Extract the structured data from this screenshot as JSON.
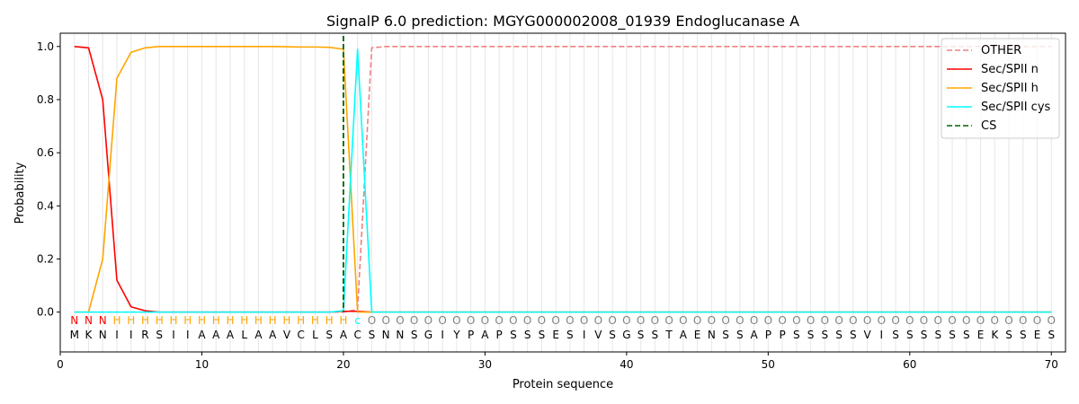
{
  "chart_data": {
    "type": "line",
    "title": "SignalP 6.0 prediction: MGYG000002008_01939 Endoglucanase A",
    "xlabel": "Protein sequence",
    "ylabel": "Probability",
    "xlim": [
      0,
      71
    ],
    "ylim": [
      -0.15,
      1.05
    ],
    "xticks": [
      0,
      10,
      20,
      30,
      40,
      50,
      60,
      70
    ],
    "yticks": [
      0.0,
      0.2,
      0.4,
      0.6,
      0.8,
      1.0
    ],
    "grid": "vertical lines at each residue",
    "legend_position": "top-right",
    "x": [
      1,
      2,
      3,
      4,
      5,
      6,
      7,
      8,
      9,
      10,
      11,
      12,
      13,
      14,
      15,
      16,
      17,
      18,
      19,
      20,
      21,
      22,
      23,
      24,
      25,
      26,
      27,
      28,
      29,
      30,
      31,
      32,
      33,
      34,
      35,
      36,
      37,
      38,
      39,
      40,
      41,
      42,
      43,
      44,
      45,
      46,
      47,
      48,
      49,
      50,
      51,
      52,
      53,
      54,
      55,
      56,
      57,
      58,
      59,
      60,
      61,
      62,
      63,
      64,
      65,
      66,
      67,
      68,
      69,
      70
    ],
    "sequence": [
      "M",
      "K",
      "N",
      "I",
      "I",
      "R",
      "S",
      "I",
      "I",
      "A",
      "A",
      "A",
      "L",
      "A",
      "A",
      "V",
      "C",
      "L",
      "S",
      "A",
      "C",
      "S",
      "N",
      "N",
      "S",
      "G",
      "I",
      "Y",
      "P",
      "A",
      "P",
      "S",
      "S",
      "S",
      "E",
      "S",
      "I",
      "V",
      "S",
      "G",
      "S",
      "S",
      "T",
      "A",
      "E",
      "N",
      "S",
      "S",
      "A",
      "P",
      "P",
      "S",
      "S",
      "S",
      "S",
      "S",
      "V",
      "I",
      "S",
      "S",
      "S",
      "S",
      "S",
      "S",
      "E",
      "K",
      "S",
      "S",
      "E",
      "S"
    ],
    "region_labels": [
      "N",
      "N",
      "N",
      "H",
      "H",
      "H",
      "H",
      "H",
      "H",
      "H",
      "H",
      "H",
      "H",
      "H",
      "H",
      "H",
      "H",
      "H",
      "H",
      "H",
      "c",
      "O",
      "O",
      "O",
      "O",
      "O",
      "O",
      "O",
      "O",
      "O",
      "O",
      "O",
      "O",
      "O",
      "O",
      "O",
      "O",
      "O",
      "O",
      "O",
      "O",
      "O",
      "O",
      "O",
      "O",
      "O",
      "O",
      "O",
      "O",
      "O",
      "O",
      "O",
      "O",
      "O",
      "O",
      "O",
      "O",
      "O",
      "O",
      "O",
      "O",
      "O",
      "O",
      "O",
      "O",
      "O",
      "O",
      "O",
      "O",
      "O"
    ],
    "region_colors": {
      "N": "#ff0000",
      "H": "#ffa500",
      "c": "#00ffff",
      "O": "#808080"
    },
    "series": [
      {
        "name": "OTHER",
        "color": "#f08080",
        "dash": "dashed",
        "values": [
          0,
          0,
          0,
          0,
          0,
          0,
          0,
          0,
          0,
          0,
          0,
          0,
          0,
          0,
          0,
          0,
          0,
          0,
          0,
          0,
          0.01,
          0.995,
          1,
          1,
          1,
          1,
          1,
          1,
          1,
          1,
          1,
          1,
          1,
          1,
          1,
          1,
          1,
          1,
          1,
          1,
          1,
          1,
          1,
          1,
          1,
          1,
          1,
          1,
          1,
          1,
          1,
          1,
          1,
          1,
          1,
          1,
          1,
          1,
          1,
          1,
          1,
          1,
          1,
          1,
          1,
          1,
          1,
          1,
          1,
          1
        ]
      },
      {
        "name": "Sec/SPII n",
        "color": "#ff0000",
        "dash": "solid",
        "values": [
          1.0,
          0.995,
          0.8,
          0.12,
          0.02,
          0.005,
          0,
          0,
          0,
          0,
          0,
          0,
          0,
          0,
          0,
          0,
          0,
          0,
          0,
          0.003,
          0.003,
          0,
          0,
          0,
          0,
          0,
          0,
          0,
          0,
          0,
          0,
          0,
          0,
          0,
          0,
          0,
          0,
          0,
          0,
          0,
          0,
          0,
          0,
          0,
          0,
          0,
          0,
          0,
          0,
          0,
          0,
          0,
          0,
          0,
          0,
          0,
          0,
          0,
          0,
          0,
          0,
          0,
          0,
          0,
          0,
          0,
          0,
          0,
          0,
          0
        ]
      },
      {
        "name": "Sec/SPII h",
        "color": "#ffa500",
        "dash": "solid",
        "values": [
          0,
          0,
          0.2,
          0.88,
          0.978,
          0.995,
          1.0,
          1.0,
          1.0,
          1.0,
          1.0,
          1.0,
          1.0,
          1.0,
          1.0,
          0.999,
          0.998,
          0.998,
          0.997,
          0.99,
          0,
          0,
          0,
          0,
          0,
          0,
          0,
          0,
          0,
          0,
          0,
          0,
          0,
          0,
          0,
          0,
          0,
          0,
          0,
          0,
          0,
          0,
          0,
          0,
          0,
          0,
          0,
          0,
          0,
          0,
          0,
          0,
          0,
          0,
          0,
          0,
          0,
          0,
          0,
          0,
          0,
          0,
          0,
          0,
          0,
          0,
          0,
          0,
          0,
          0
        ]
      },
      {
        "name": "Sec/SPII cys",
        "color": "#00ffff",
        "dash": "solid",
        "values": [
          0,
          0,
          0,
          0,
          0,
          0,
          0,
          0,
          0,
          0,
          0,
          0,
          0,
          0,
          0,
          0,
          0,
          0,
          0,
          0.005,
          0.99,
          0,
          0,
          0,
          0,
          0,
          0,
          0,
          0,
          0,
          0,
          0,
          0,
          0,
          0,
          0,
          0,
          0,
          0,
          0,
          0,
          0,
          0,
          0,
          0,
          0,
          0,
          0,
          0,
          0,
          0,
          0,
          0,
          0,
          0,
          0,
          0,
          0,
          0,
          0,
          0,
          0,
          0,
          0,
          0,
          0,
          0,
          0,
          0,
          0
        ]
      },
      {
        "name": "CS",
        "color": "#006400",
        "dash": "dashed",
        "vline_x": 20
      }
    ]
  }
}
